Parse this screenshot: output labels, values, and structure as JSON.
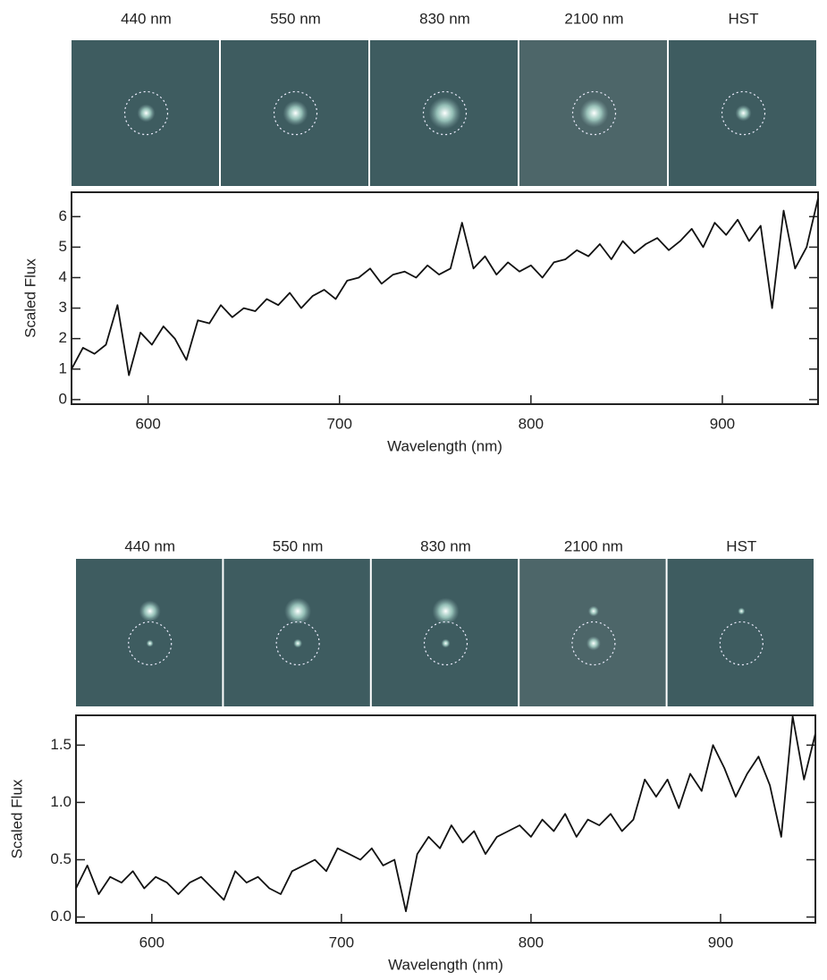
{
  "chart_data": [
    {
      "type": "line",
      "panels": [
        "440 nm",
        "550 nm",
        "830 nm",
        "2100 nm",
        "HST"
      ],
      "x_label": "Wavelength (nm)",
      "y_label": "Scaled Flux",
      "color": "#111111",
      "xlim": [
        560,
        950
      ],
      "ylim": [
        -0.15,
        6.8
      ],
      "xticks": [
        600,
        700,
        800,
        900
      ],
      "yticks": [
        0,
        1,
        2,
        3,
        4,
        5,
        6
      ],
      "x": [
        560,
        566,
        572,
        578,
        584,
        590,
        596,
        602,
        608,
        614,
        620,
        626,
        632,
        638,
        644,
        650,
        656,
        662,
        668,
        674,
        680,
        686,
        692,
        698,
        704,
        710,
        716,
        722,
        728,
        734,
        740,
        746,
        752,
        758,
        764,
        770,
        776,
        782,
        788,
        794,
        800,
        806,
        812,
        818,
        824,
        830,
        836,
        842,
        848,
        854,
        860,
        866,
        872,
        878,
        884,
        890,
        896,
        902,
        908,
        914,
        920,
        926,
        932,
        938,
        944,
        950
      ],
      "values": [
        1.0,
        1.7,
        1.5,
        1.8,
        3.1,
        0.8,
        2.2,
        1.8,
        2.4,
        2.0,
        1.3,
        2.6,
        2.5,
        3.1,
        2.7,
        3.0,
        2.9,
        3.3,
        3.1,
        3.5,
        3.0,
        3.4,
        3.6,
        3.3,
        3.9,
        4.0,
        4.3,
        3.8,
        4.1,
        4.2,
        4.0,
        4.4,
        4.1,
        4.3,
        5.8,
        4.3,
        4.7,
        4.1,
        4.5,
        4.2,
        4.4,
        4.0,
        4.5,
        4.6,
        4.9,
        4.7,
        5.1,
        4.6,
        5.2,
        4.8,
        5.1,
        5.3,
        4.9,
        5.2,
        5.6,
        5.0,
        5.8,
        5.4,
        5.9,
        5.2,
        5.7,
        3.0,
        6.2,
        4.3,
        5.0,
        6.6
      ]
    },
    {
      "type": "line",
      "panels": [
        "440 nm",
        "550 nm",
        "830 nm",
        "2100 nm",
        "HST"
      ],
      "x_label": "Wavelength (nm)",
      "y_label": "Scaled Flux",
      "color": "#111111",
      "xlim": [
        560,
        950
      ],
      "ylim": [
        -0.05,
        1.76
      ],
      "xticks": [
        600,
        700,
        800,
        900
      ],
      "yticks": [
        {
          "value": 0,
          "label": "0.0"
        },
        0.5,
        {
          "value": 1,
          "label": "1.0"
        },
        1.5
      ],
      "x": [
        560,
        566,
        572,
        578,
        584,
        590,
        596,
        602,
        608,
        614,
        620,
        626,
        632,
        638,
        644,
        650,
        656,
        662,
        668,
        674,
        680,
        686,
        692,
        698,
        704,
        710,
        716,
        722,
        728,
        734,
        740,
        746,
        752,
        758,
        764,
        770,
        776,
        782,
        788,
        794,
        800,
        806,
        812,
        818,
        824,
        830,
        836,
        842,
        848,
        854,
        860,
        866,
        872,
        878,
        884,
        890,
        896,
        902,
        908,
        914,
        920,
        926,
        932,
        938,
        944,
        950
      ],
      "values": [
        0.25,
        0.45,
        0.2,
        0.35,
        0.3,
        0.4,
        0.25,
        0.35,
        0.3,
        0.2,
        0.3,
        0.35,
        0.25,
        0.15,
        0.4,
        0.3,
        0.35,
        0.25,
        0.2,
        0.4,
        0.45,
        0.5,
        0.4,
        0.6,
        0.55,
        0.5,
        0.6,
        0.45,
        0.5,
        0.05,
        0.55,
        0.7,
        0.6,
        0.8,
        0.65,
        0.75,
        0.55,
        0.7,
        0.75,
        0.8,
        0.7,
        0.85,
        0.75,
        0.9,
        0.7,
        0.85,
        0.8,
        0.9,
        0.75,
        0.85,
        1.2,
        1.05,
        1.2,
        0.95,
        1.25,
        1.1,
        1.5,
        1.3,
        1.05,
        1.25,
        1.4,
        1.15,
        0.7,
        1.75,
        1.2,
        1.6
      ]
    }
  ]
}
